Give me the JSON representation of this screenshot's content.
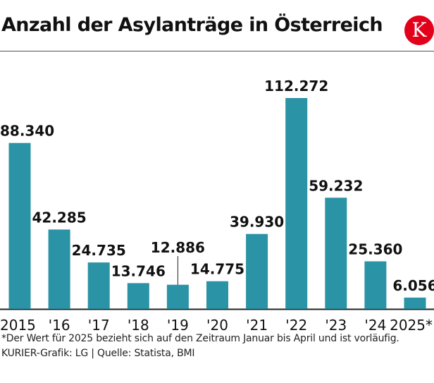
{
  "header": {
    "title": "Anzahl der Asylanträge in Österreich",
    "logo_letter": "K",
    "logo_color": "#e2001a"
  },
  "chart_data": {
    "type": "bar",
    "categories": [
      "2015",
      "'16",
      "'17",
      "'18",
      "'19",
      "'20",
      "'21",
      "'22",
      "'23",
      "'24",
      "2025*"
    ],
    "values": [
      88340,
      42285,
      24735,
      13746,
      12886,
      14775,
      39930,
      112272,
      59232,
      25360,
      6056
    ],
    "data_labels": [
      "88.340",
      "42.285",
      "24.735",
      "13.746",
      "12.886",
      "14.775",
      "39.930",
      "112.272",
      "59.232",
      "25.360",
      "6.056"
    ],
    "bar_color": "#2a93a5",
    "ylim": [
      0,
      112272
    ],
    "grid": false,
    "title": "Anzahl der Asylanträge in Österreich",
    "xlabel": "",
    "ylabel": ""
  },
  "footer": {
    "note": "*Der Wert für 2025 bezieht sich auf den Zeitraum Januar bis April und ist vorläufig.",
    "source": "KURIER-Grafik: LG | Quelle: Statista, BMI"
  }
}
